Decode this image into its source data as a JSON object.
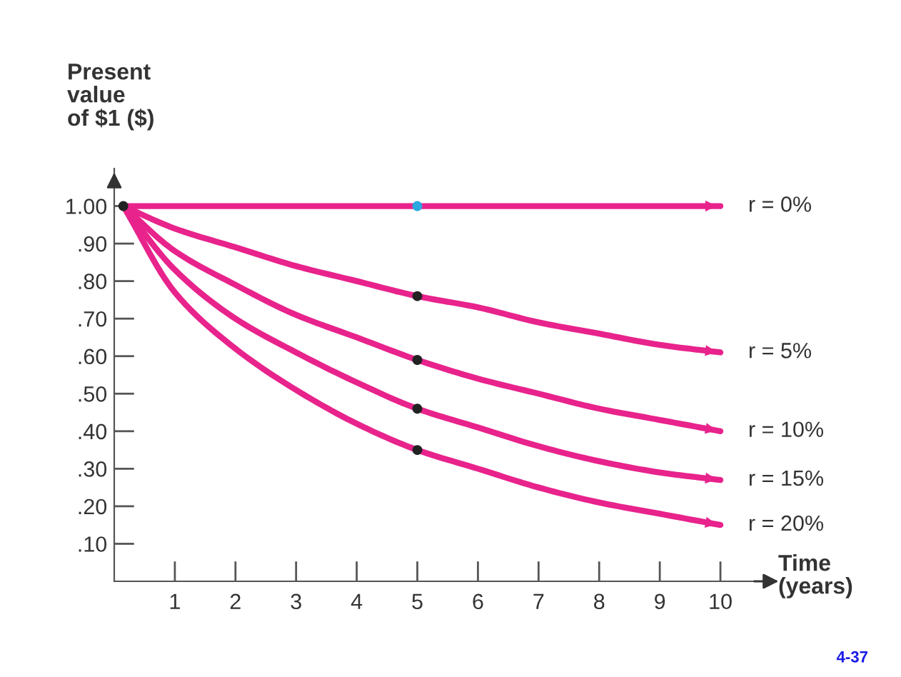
{
  "chart_data": {
    "type": "line",
    "ylabel": "Present\nvalue\nof $1 ($)",
    "xlabel": "Time\n(years)",
    "annotations": [
      "4-37"
    ],
    "xlim": [
      0,
      10.6
    ],
    "ylim": [
      0,
      1.1
    ],
    "xticks": [
      1,
      2,
      3,
      4,
      5,
      6,
      7,
      8,
      9,
      10
    ],
    "yticks": [
      {
        "value": 0.1,
        "label": ".10"
      },
      {
        "value": 0.2,
        "label": ".20"
      },
      {
        "value": 0.3,
        "label": ".30"
      },
      {
        "value": 0.4,
        "label": ".40"
      },
      {
        "value": 0.5,
        "label": ".50"
      },
      {
        "value": 0.6,
        "label": ".60"
      },
      {
        "value": 0.7,
        "label": ".70"
      },
      {
        "value": 0.8,
        "label": ".80"
      },
      {
        "value": 0.9,
        "label": ".90"
      },
      {
        "value": 1.0,
        "label": "1.00"
      }
    ],
    "x": [
      0.15,
      1,
      2,
      3,
      4,
      5,
      6,
      7,
      8,
      9,
      10
    ],
    "grid": false,
    "legend": "right",
    "marker": "none",
    "line_style": "solid",
    "series": [
      {
        "name": "r = 0%",
        "color": "#e8238c",
        "values": [
          1,
          1,
          1,
          1,
          1,
          1,
          1,
          1,
          1,
          1,
          1
        ]
      },
      {
        "name": "r = 5%",
        "color": "#e8238c",
        "values": [
          1,
          0.94,
          0.89,
          0.84,
          0.8,
          0.76,
          0.73,
          0.69,
          0.66,
          0.63,
          0.61
        ]
      },
      {
        "name": "r = 10%",
        "color": "#e8238c",
        "values": [
          1,
          0.88,
          0.79,
          0.71,
          0.65,
          0.59,
          0.54,
          0.5,
          0.46,
          0.43,
          0.4
        ]
      },
      {
        "name": "r = 15%",
        "color": "#e8238c",
        "values": [
          1,
          0.83,
          0.7,
          0.61,
          0.53,
          0.46,
          0.41,
          0.36,
          0.32,
          0.29,
          0.27
        ]
      },
      {
        "name": "r = 20%",
        "color": "#e8238c",
        "values": [
          1,
          0.77,
          0.62,
          0.51,
          0.42,
          0.35,
          0.3,
          0.25,
          0.21,
          0.18,
          0.15
        ]
      },
      {
        "type": "scatter",
        "marker": "circle",
        "color": "#222222",
        "values": [
          1,
          null,
          null,
          null,
          null,
          0.76,
          null,
          null,
          null,
          null,
          null
        ]
      },
      {
        "type": "scatter",
        "marker": "circle",
        "color": "#29a9e0",
        "values": [
          null,
          null,
          null,
          null,
          null,
          1,
          null,
          null,
          null,
          null,
          null
        ]
      },
      {
        "type": "scatter",
        "marker": "circle",
        "color": "#222222",
        "values": [
          null,
          null,
          null,
          null,
          null,
          0.59,
          null,
          null,
          null,
          null,
          null
        ]
      },
      {
        "type": "scatter",
        "marker": "circle",
        "color": "#222222",
        "values": [
          null,
          null,
          null,
          null,
          null,
          0.46,
          null,
          null,
          null,
          null,
          null
        ]
      },
      {
        "type": "scatter",
        "marker": "circle",
        "color": "#222222",
        "values": [
          null,
          null,
          null,
          null,
          null,
          0.35,
          null,
          null,
          null,
          null,
          null
        ]
      }
    ]
  }
}
